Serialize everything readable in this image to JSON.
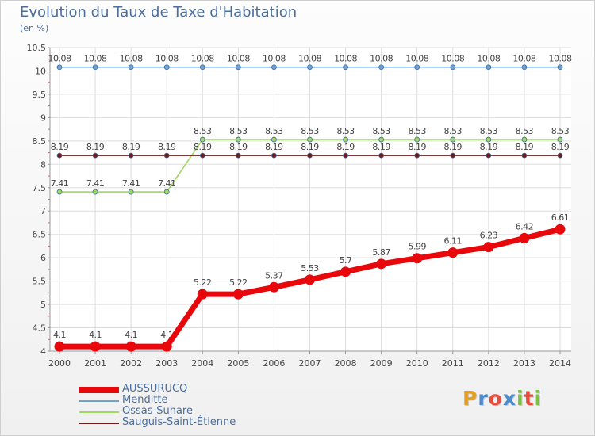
{
  "header": {
    "title": "Evolution du Taux de Taxe d'Habitation",
    "unit": "(en %)"
  },
  "logo": {
    "text": "Proxiti",
    "letters": [
      "P",
      "r",
      "o",
      "x",
      "i",
      "t",
      "i"
    ],
    "colors": [
      "#e8a020",
      "#4a8bd0",
      "#e84c3d",
      "#4a8bd0",
      "#7cc242",
      "#e84c3d",
      "#7cc242"
    ]
  },
  "chart_data": {
    "type": "line",
    "title": "Evolution du Taux de Taxe d'Habitation",
    "ylabel": "(en %)",
    "xlabel": "",
    "x": [
      "2000",
      "2001",
      "2002",
      "2003",
      "2004",
      "2005",
      "2006",
      "2007",
      "2008",
      "2009",
      "2010",
      "2011",
      "2012",
      "2013",
      "2014"
    ],
    "ylim": [
      4,
      10.5
    ],
    "yticks": [
      "4",
      "4.5",
      "5",
      "5.5",
      "6",
      "6.5",
      "7",
      "7.5",
      "8",
      "8.5",
      "9",
      "9.5",
      "10",
      "10.5"
    ],
    "legend_position": "bottom-left",
    "series": [
      {
        "name": "AUSSURUCQ",
        "color": "#e8070b",
        "values": [
          4.1,
          4.1,
          4.1,
          4.1,
          5.22,
          5.22,
          5.37,
          5.53,
          5.7,
          5.87,
          5.99,
          6.11,
          6.23,
          6.42,
          6.61
        ],
        "labels": [
          "4.1",
          "4.1",
          "4.1",
          "4.1",
          "5.22",
          "5.22",
          "5.37",
          "5.53",
          "5.7",
          "5.87",
          "5.99",
          "6.11",
          "6.23",
          "6.42",
          "6.61"
        ]
      },
      {
        "name": "Menditte",
        "color": "#6fa1d6",
        "values": [
          10.08,
          10.08,
          10.08,
          10.08,
          10.08,
          10.08,
          10.08,
          10.08,
          10.08,
          10.08,
          10.08,
          10.08,
          10.08,
          10.08,
          10.08
        ],
        "labels": [
          "10.08",
          "10.08",
          "10.08",
          "10.08",
          "10.08",
          "10.08",
          "10.08",
          "10.08",
          "10.08",
          "10.08",
          "10.08",
          "10.08",
          "10.08",
          "10.08",
          "10.08"
        ]
      },
      {
        "name": "Ossas-Suhare",
        "color": "#9fd863",
        "values": [
          7.41,
          7.41,
          7.41,
          7.41,
          8.53,
          8.53,
          8.53,
          8.53,
          8.53,
          8.53,
          8.53,
          8.53,
          8.53,
          8.53,
          8.53
        ],
        "labels": [
          "7.41",
          "7.41",
          "7.41",
          "7.41",
          "8.53",
          "8.53",
          "8.53",
          "8.53",
          "8.53",
          "8.53",
          "8.53",
          "8.53",
          "8.53",
          "8.53",
          "8.53"
        ]
      },
      {
        "name": "Sauguis-Saint-Étienne",
        "color": "#6e1c1c",
        "values": [
          8.19,
          8.19,
          8.19,
          8.19,
          8.19,
          8.19,
          8.19,
          8.19,
          8.19,
          8.19,
          8.19,
          8.19,
          8.19,
          8.19,
          8.19
        ],
        "labels": [
          "8.19",
          "8.19",
          "8.19",
          "8.19",
          "8.19",
          "8.19",
          "8.19",
          "8.19",
          "8.19",
          "8.19",
          "8.19",
          "8.19",
          "8.19",
          "8.19",
          "8.19"
        ]
      }
    ]
  }
}
